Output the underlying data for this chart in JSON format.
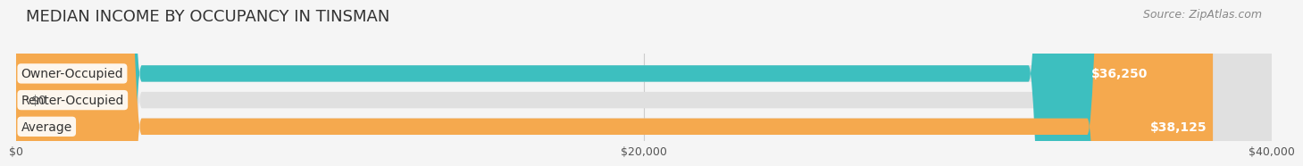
{
  "title": "MEDIAN INCOME BY OCCUPANCY IN TINSMAN",
  "source": "Source: ZipAtlas.com",
  "categories": [
    "Owner-Occupied",
    "Renter-Occupied",
    "Average"
  ],
  "values": [
    36250,
    0,
    38125
  ],
  "bar_colors": [
    "#3dbfbf",
    "#b8a0c8",
    "#f5a94e"
  ],
  "bar_labels": [
    "$36,250",
    "$0",
    "$38,125"
  ],
  "xlim": [
    0,
    40000
  ],
  "xticks": [
    0,
    20000,
    40000
  ],
  "xticklabels": [
    "$0",
    "$20,000",
    "$40,000"
  ],
  "background_color": "#f5f5f5",
  "bar_bg_color": "#e0e0e0",
  "title_fontsize": 13,
  "source_fontsize": 9,
  "label_fontsize": 10,
  "value_fontsize": 10
}
